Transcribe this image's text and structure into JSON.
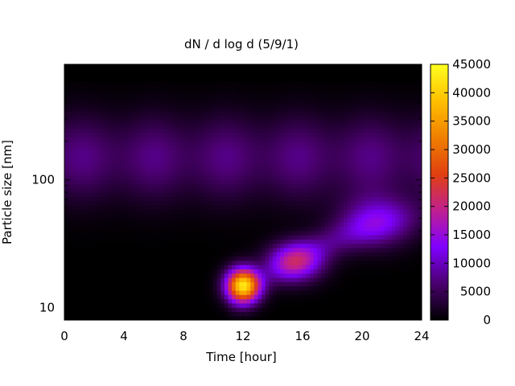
{
  "chart_data": {
    "type": "heatmap",
    "title": "dN / d log d (5/9/1)",
    "xlabel": "Time [hour]",
    "ylabel": "Particle size [nm]",
    "x_ticks": [
      "0",
      "4",
      "8",
      "12",
      "16",
      "20",
      "24"
    ],
    "y_ticks": [
      "10",
      "100"
    ],
    "xlim": [
      0,
      24
    ],
    "ylim": [
      8,
      800
    ],
    "y_scale": "log",
    "colorbar": {
      "range": [
        0,
        45000
      ],
      "ticks": [
        "0",
        "5000",
        "10000",
        "15000",
        "20000",
        "25000",
        "30000",
        "35000",
        "40000",
        "45000"
      ],
      "colormap": [
        "#000000",
        "#4a006e",
        "#8000ff",
        "#c02090",
        "#e04010",
        "#f08000",
        "#ffc000",
        "#ffff20"
      ]
    },
    "features": [
      {
        "region": "background mode",
        "time_range": [
          0,
          24
        ],
        "size_range": [
          60,
          350
        ],
        "peak_value": 7500
      },
      {
        "region": "nucleation event",
        "time_peak": 12,
        "size_peak": 15,
        "peak_value": 42000
      },
      {
        "region": "growing mode",
        "time_peak": 15.5,
        "size_peak": 23,
        "peak_value": 17000
      },
      {
        "region": "grown mode",
        "time_peak": 21,
        "size_peak": 48,
        "peak_value": 10000
      }
    ]
  }
}
